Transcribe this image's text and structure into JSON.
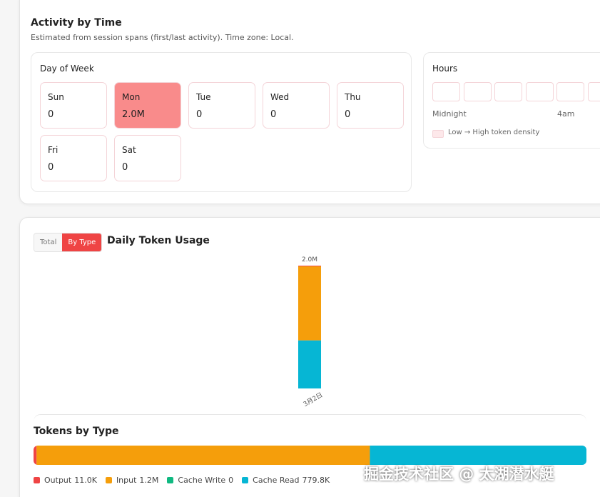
{
  "activity": {
    "title": "Activity by Time",
    "subtitle": "Estimated from session spans (first/last activity). Time zone: Local.",
    "day_of_week": {
      "title": "Day of Week",
      "days": [
        {
          "name": "Sun",
          "value": "0",
          "color": "#ffffff"
        },
        {
          "name": "Mon",
          "value": "2.0M",
          "color": "#f98b8b"
        },
        {
          "name": "Tue",
          "value": "0",
          "color": "#ffffff"
        },
        {
          "name": "Wed",
          "value": "0",
          "color": "#ffffff"
        },
        {
          "name": "Thu",
          "value": "0",
          "color": "#ffffff"
        },
        {
          "name": "Fri",
          "value": "0",
          "color": "#ffffff"
        },
        {
          "name": "Sat",
          "value": "0",
          "color": "#ffffff"
        }
      ]
    },
    "hours": {
      "title": "Hours",
      "labels": [
        "Midnight",
        "4am"
      ],
      "legend": "Low → High token density"
    }
  },
  "daily": {
    "toggle": [
      "Total",
      "By Type"
    ],
    "chart_data": {
      "type": "bar",
      "stacked": true,
      "title": "Daily Token Usage",
      "categories": [
        "3月2日"
      ],
      "total_labels": [
        "2.0M"
      ],
      "series": [
        {
          "name": "Output",
          "color": "#ef4444",
          "values": [
            11000
          ]
        },
        {
          "name": "Input",
          "color": "#f59e0b",
          "values": [
            1200000
          ]
        },
        {
          "name": "Cache Write",
          "color": "#10b981",
          "values": [
            0
          ]
        },
        {
          "name": "Cache Read",
          "color": "#06b6d4",
          "values": [
            779800
          ]
        }
      ]
    }
  },
  "tokens_by_type": {
    "chart_data": {
      "type": "stacked-horizontal-bar",
      "title": "Tokens by Type",
      "series": [
        {
          "name": "Output",
          "color": "#ef4444",
          "value": 11000,
          "value_label": "11.0K"
        },
        {
          "name": "Input",
          "color": "#f59e0b",
          "value": 1200000,
          "value_label": "1.2M"
        },
        {
          "name": "Cache Write",
          "color": "#10b981",
          "value": 0,
          "value_label": "0"
        },
        {
          "name": "Cache Read",
          "color": "#06b6d4",
          "value": 779800,
          "value_label": "779.8K"
        }
      ]
    }
  },
  "watermark": "掘金技术社区 @ 太湖潜水艇"
}
